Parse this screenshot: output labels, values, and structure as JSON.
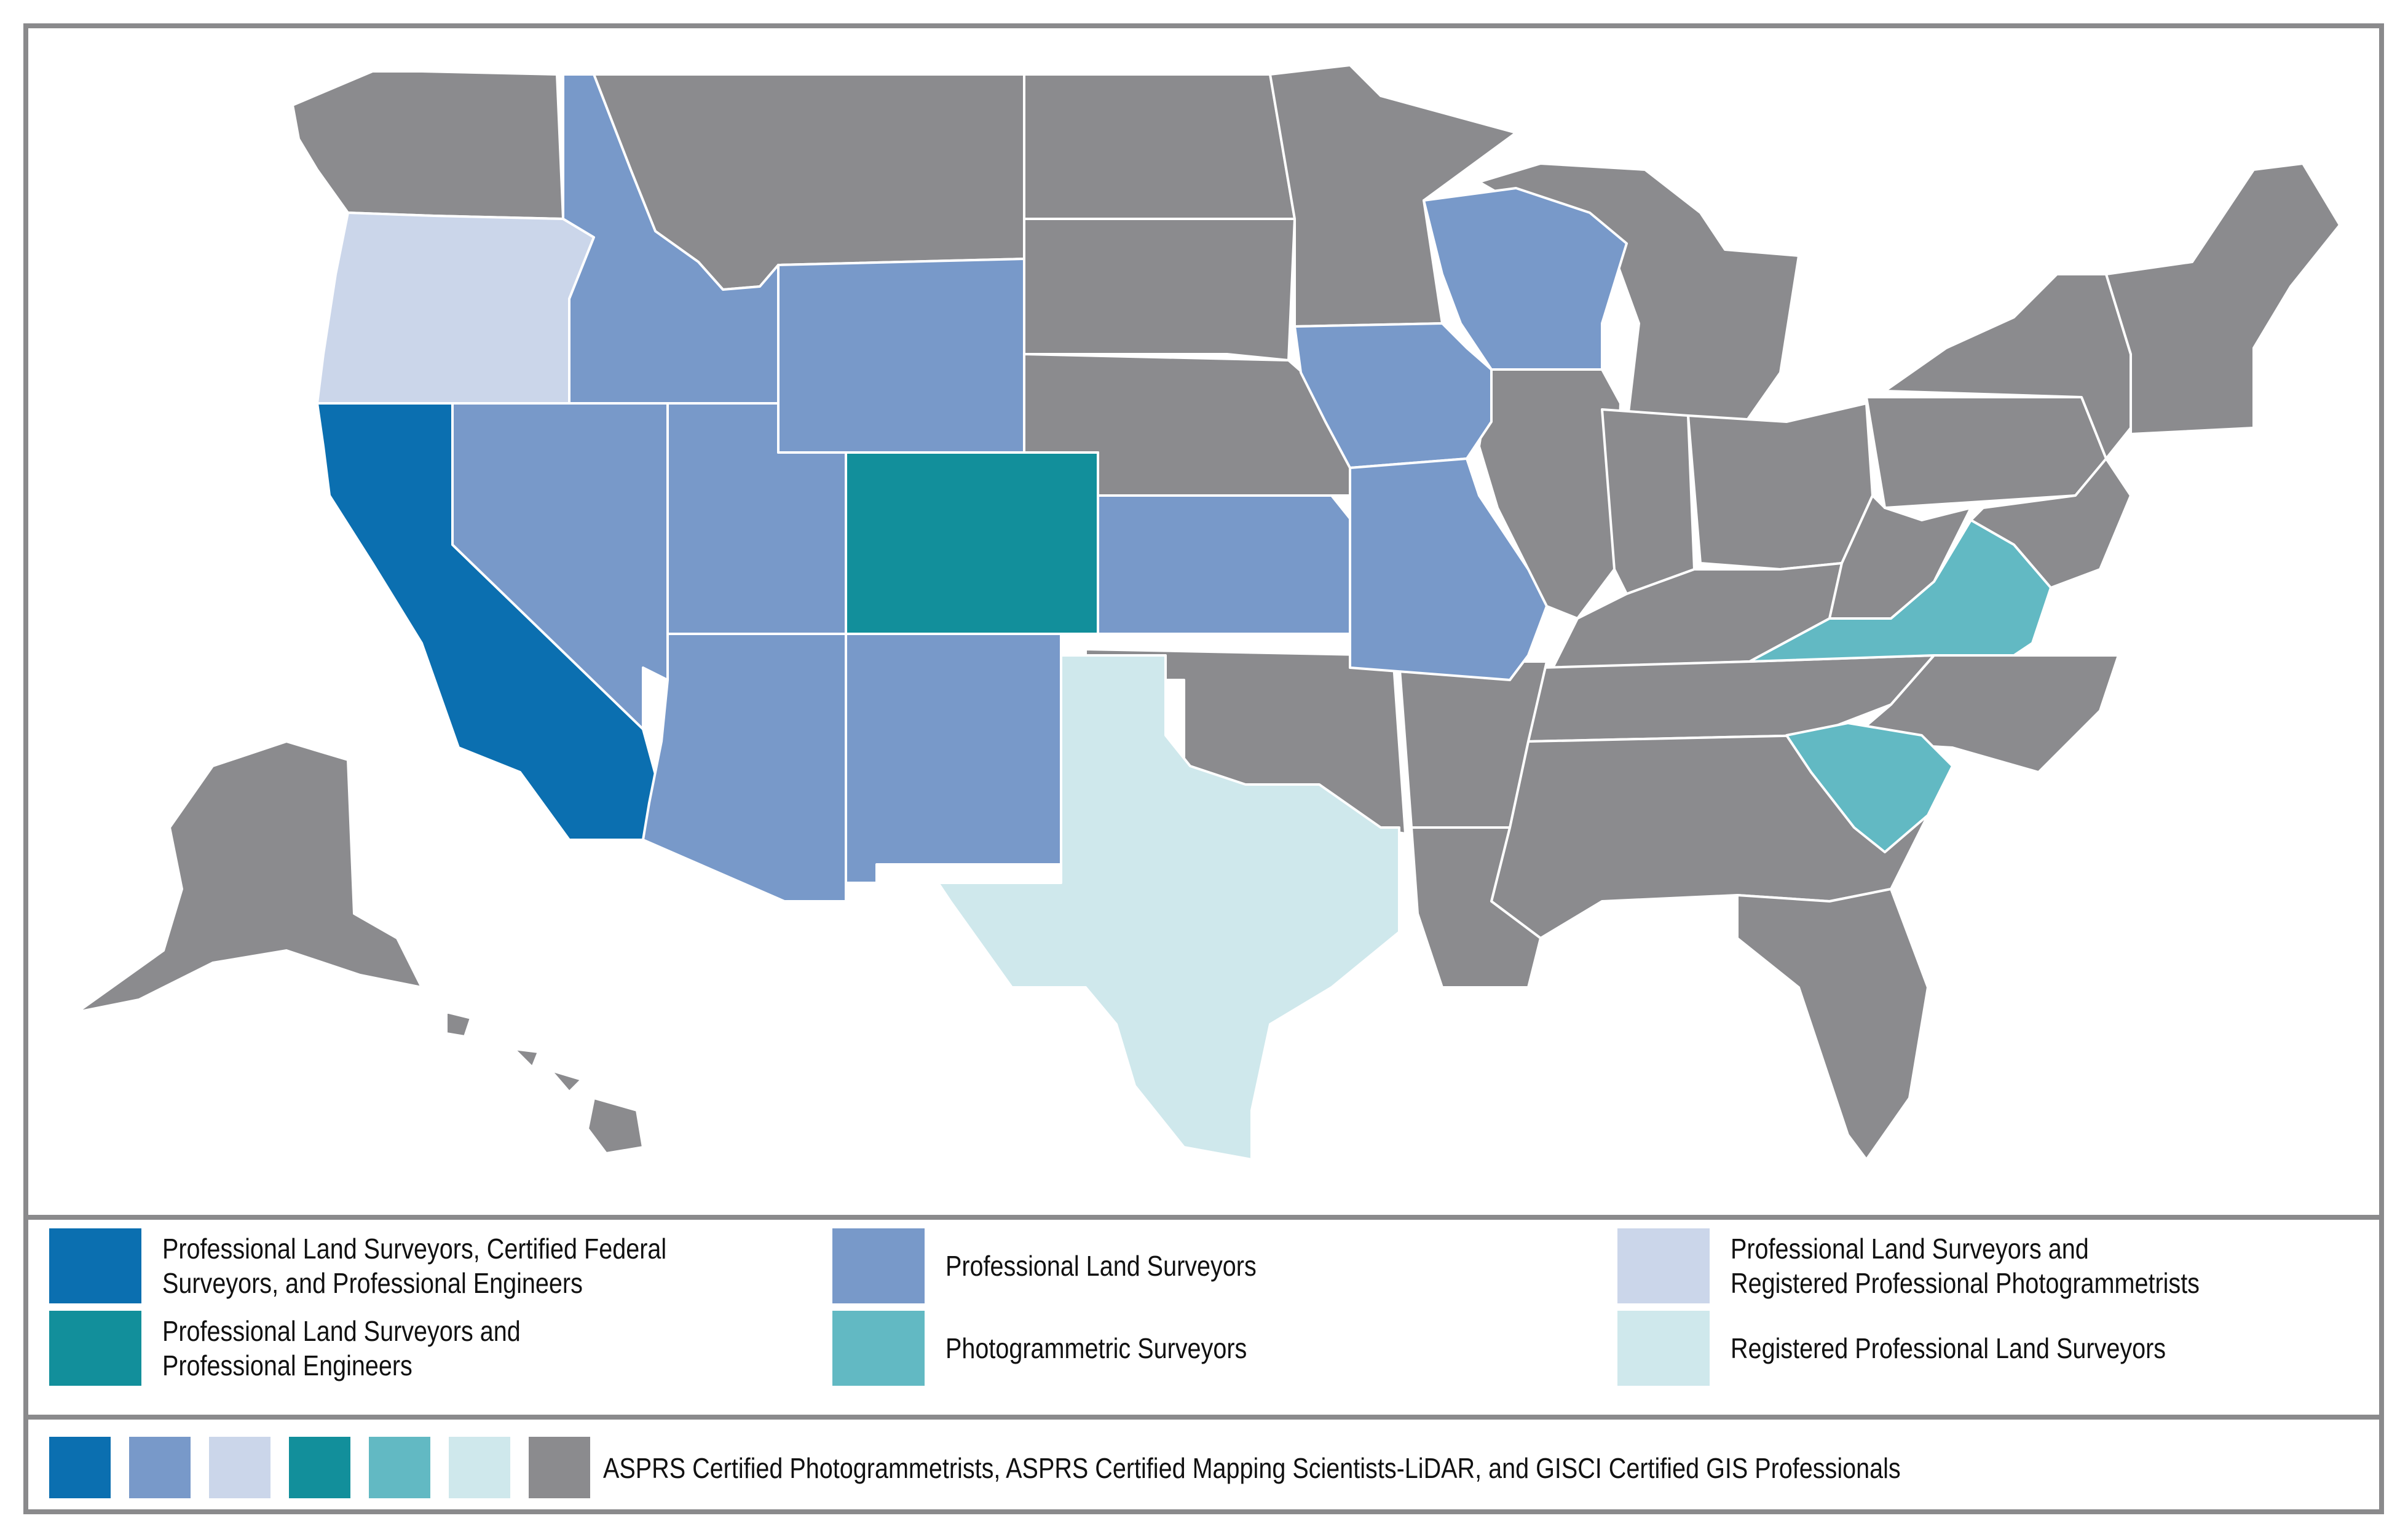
{
  "colors": {
    "dark_blue": "#0b6fb0",
    "medium_blue": "#7899c9",
    "light_periwinkle": "#cbd6ea",
    "teal": "#128f9b",
    "light_teal": "#62b9c3",
    "pale_aqua": "#cfe8ec",
    "gray": "#8b8b8e"
  },
  "legend": {
    "items": [
      {
        "label": "Professional Land Surveyors, Certified Federal\nSurveyors, and Professional Engineers",
        "color": "#0b6fb0",
        "states": [
          "California"
        ]
      },
      {
        "label": "Professional Land Surveyors",
        "color": "#7899c9",
        "states": [
          "Idaho",
          "Nevada",
          "Utah",
          "Wyoming",
          "Arizona",
          "New Mexico",
          "Kansas",
          "Iowa",
          "Missouri",
          "Wisconsin"
        ]
      },
      {
        "label": "Professional Land Surveyors and\nRegistered Professional Photogrammetrists",
        "color": "#cbd6ea",
        "states": [
          "Oregon"
        ]
      },
      {
        "label": "Professional Land Surveyors and\nProfessional Engineers",
        "color": "#128f9b",
        "states": [
          "Colorado"
        ]
      },
      {
        "label": "Photogrammetric Surveyors",
        "color": "#62b9c3",
        "states": [
          "Virginia",
          "South Carolina"
        ]
      },
      {
        "label": "Registered Professional Land Surveyors",
        "color": "#cfe8ec",
        "states": [
          "Texas"
        ]
      }
    ]
  },
  "footer": {
    "swatch_colors": [
      "#0b6fb0",
      "#7899c9",
      "#cbd6ea",
      "#128f9b",
      "#62b9c3",
      "#cfe8ec",
      "#8b8b8e"
    ],
    "label": "ASPRS Certified Photogrammetrists, ASPRS Certified Mapping Scientists-LiDAR, and GISCI Certified GIS Professionals"
  }
}
